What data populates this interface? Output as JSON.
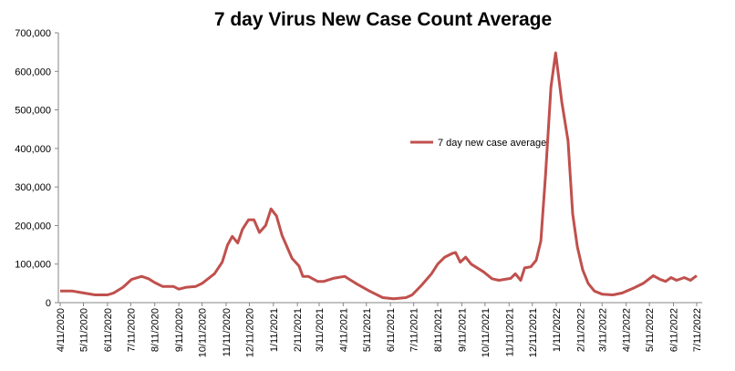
{
  "chart_data": {
    "type": "line",
    "title": "7 day Virus New Case Count Average",
    "x": [
      "4/11/2020",
      "4/27/2020",
      "5/11/2020",
      "5/26/2020",
      "6/11/2020",
      "6/19/2020",
      "7/1/2020",
      "7/12/2020",
      "7/25/2020",
      "8/3/2020",
      "8/11/2020",
      "8/21/2020",
      "9/4/2020",
      "9/11/2020",
      "9/21/2020",
      "10/3/2020",
      "10/11/2020",
      "10/27/2020",
      "11/6/2020",
      "11/13/2020",
      "11/19/2020",
      "11/26/2020",
      "12/2/2020",
      "12/10/2020",
      "12/17/2020",
      "12/24/2020",
      "1/1/2021",
      "1/8/2021",
      "1/15/2021",
      "1/22/2021",
      "2/4/2021",
      "2/13/2021",
      "2/18/2021",
      "2/25/2021",
      "3/9/2021",
      "3/17/2021",
      "3/29/2021",
      "4/13/2021",
      "4/21/2021",
      "4/29/2021",
      "5/15/2021",
      "6/1/2021",
      "6/15/2021",
      "7/1/2021",
      "7/9/2021",
      "7/21/2021",
      "8/3/2021",
      "8/11/2021",
      "8/20/2021",
      "8/30/2021",
      "9/3/2021",
      "9/9/2021",
      "9/16/2021",
      "9/23/2021",
      "10/9/2021",
      "10/20/2021",
      "10/29/2021",
      "11/13/2021",
      "11/19/2021",
      "11/26/2021",
      "12/1/2021",
      "12/9/2021",
      "12/16/2021",
      "12/22/2021",
      "12/28/2021",
      "1/4/2022",
      "1/10/2022",
      "1/18/2022",
      "1/26/2022",
      "2/1/2022",
      "2/7/2022",
      "2/14/2022",
      "2/21/2022",
      "3/1/2022",
      "3/11/2022",
      "3/25/2022",
      "4/6/2022",
      "4/21/2022",
      "5/3/2022",
      "5/16/2022",
      "5/25/2022",
      "6/1/2022",
      "6/8/2022",
      "6/15/2022",
      "6/25/2022",
      "7/3/2022",
      "7/11/2022"
    ],
    "series": [
      {
        "name": "7 day new case average",
        "color": "#c0504d",
        "values": [
          30000,
          30000,
          25000,
          20000,
          20000,
          25000,
          40000,
          60000,
          68000,
          62000,
          52000,
          42000,
          42000,
          35000,
          40000,
          42000,
          50000,
          75000,
          105000,
          150000,
          172000,
          155000,
          190000,
          215000,
          215000,
          182000,
          200000,
          243000,
          225000,
          175000,
          115000,
          95000,
          68000,
          68000,
          55000,
          55000,
          63000,
          68000,
          58000,
          48000,
          30000,
          13000,
          10000,
          13000,
          20000,
          45000,
          75000,
          100000,
          118000,
          128000,
          130000,
          105000,
          118000,
          100000,
          80000,
          62000,
          58000,
          63000,
          75000,
          58000,
          90000,
          93000,
          110000,
          160000,
          330000,
          560000,
          648000,
          520000,
          420000,
          230000,
          145000,
          85000,
          50000,
          30000,
          22000,
          20000,
          25000,
          38000,
          50000,
          70000,
          60000,
          55000,
          65000,
          58000,
          65000,
          58000,
          70000
        ]
      }
    ],
    "xlim": [
      "4/11/2020",
      "7/11/2022"
    ],
    "xticks": [
      "4/11/2020",
      "5/11/2020",
      "6/11/2020",
      "7/11/2020",
      "8/11/2020",
      "9/11/2020",
      "10/11/2020",
      "11/11/2020",
      "12/11/2020",
      "1/11/2021",
      "2/11/2021",
      "3/11/2021",
      "4/11/2021",
      "5/11/2021",
      "6/11/2021",
      "7/11/2021",
      "8/11/2021",
      "9/11/2021",
      "10/11/2021",
      "11/11/2021",
      "12/11/2021",
      "1/11/2022",
      "2/11/2022",
      "3/11/2022",
      "4/11/2022",
      "5/11/2022",
      "6/11/2022",
      "7/11/2022"
    ],
    "ylim": [
      0,
      700000
    ],
    "yticks": [
      0,
      {
        "value": 100000,
        "label": "100,000"
      },
      {
        "value": 200000,
        "label": "200,000"
      },
      {
        "value": 300000,
        "label": "300,000"
      },
      {
        "value": 400000,
        "label": "400,000"
      },
      {
        "value": 500000,
        "label": "500,000"
      },
      {
        "value": 600000,
        "label": "600,000"
      },
      {
        "value": 700000,
        "label": "700,000"
      }
    ],
    "grid": false,
    "legend": "center"
  }
}
